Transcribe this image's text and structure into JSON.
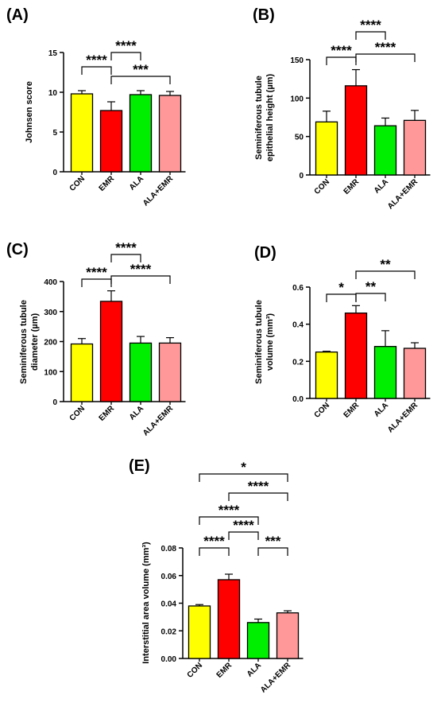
{
  "chart_data": [
    {
      "type": "bar",
      "panel": "(A)",
      "categories": [
        "CON",
        "EMR",
        "ALA",
        "ALA+EMR"
      ],
      "values": [
        9.8,
        7.7,
        9.7,
        9.6
      ],
      "errors": [
        0.4,
        1.1,
        0.5,
        0.5
      ],
      "colors": [
        "#ffff00",
        "#ff0000",
        "#00ee00",
        "#ff9999"
      ],
      "ylabel": "Johnsen score",
      "ylim": [
        0,
        15
      ],
      "yticks": [
        0,
        5,
        10,
        15
      ],
      "significance": [
        {
          "from": 0,
          "to": 1,
          "label": "****"
        },
        {
          "from": 1,
          "to": 2,
          "label": "****"
        },
        {
          "from": 1,
          "to": 3,
          "label": "***"
        }
      ]
    },
    {
      "type": "bar",
      "panel": "(B)",
      "categories": [
        "CON",
        "EMR",
        "ALA",
        "ALA+EMR"
      ],
      "values": [
        69,
        116,
        64,
        71
      ],
      "errors": [
        14,
        21,
        10,
        13
      ],
      "colors": [
        "#ffff00",
        "#ff0000",
        "#00ee00",
        "#ff9999"
      ],
      "ylabel": "Seminiferous tubule epithelial height (µm)",
      "ylabel_lines": [
        "Seminiferous tubule",
        "epithelial height (µm)"
      ],
      "ylim": [
        0,
        150
      ],
      "yticks": [
        0,
        50,
        100,
        150
      ],
      "significance": [
        {
          "from": 0,
          "to": 1,
          "label": "****"
        },
        {
          "from": 1,
          "to": 2,
          "label": "****"
        },
        {
          "from": 1,
          "to": 3,
          "label": "****"
        }
      ]
    },
    {
      "type": "bar",
      "panel": "(C)",
      "categories": [
        "CON",
        "EMR",
        "ALA",
        "ALA+EMR"
      ],
      "values": [
        192,
        334,
        195,
        195
      ],
      "errors": [
        18,
        35,
        22,
        18
      ],
      "colors": [
        "#ffff00",
        "#ff0000",
        "#00ee00",
        "#ff9999"
      ],
      "ylabel": "Seminiferous tubule diameter (µm)",
      "ylabel_lines": [
        "Seminiferous tubule",
        "diameter (µm)"
      ],
      "ylim": [
        0,
        400
      ],
      "yticks": [
        0,
        100,
        200,
        300,
        400
      ],
      "significance": [
        {
          "from": 0,
          "to": 1,
          "label": "****"
        },
        {
          "from": 1,
          "to": 2,
          "label": "****"
        },
        {
          "from": 1,
          "to": 3,
          "label": "****"
        }
      ]
    },
    {
      "type": "bar",
      "panel": "(D)",
      "categories": [
        "CON",
        "EMR",
        "ALA",
        "ALA+EMR"
      ],
      "values": [
        0.25,
        0.46,
        0.28,
        0.27
      ],
      "errors": [
        0.004,
        0.04,
        0.085,
        0.03
      ],
      "colors": [
        "#ffff00",
        "#ff0000",
        "#00ee00",
        "#ff9999"
      ],
      "ylabel": "Seminiferous tubule volume (mm³)",
      "ylabel_lines": [
        "Seminiferous tubule",
        "volume (mm³)"
      ],
      "ylim": [
        0,
        0.6
      ],
      "yticks": [
        "0.0",
        "0.2",
        "0.4",
        "0.6"
      ],
      "significance": [
        {
          "from": 0,
          "to": 1,
          "label": "*"
        },
        {
          "from": 1,
          "to": 2,
          "label": "**"
        },
        {
          "from": 1,
          "to": 3,
          "label": "**"
        }
      ]
    },
    {
      "type": "bar",
      "panel": "(E)",
      "categories": [
        "CON",
        "EMR",
        "ALA",
        "ALA+EMR"
      ],
      "values": [
        0.038,
        0.057,
        0.026,
        0.033
      ],
      "errors": [
        0.001,
        0.004,
        0.0025,
        0.0015
      ],
      "colors": [
        "#ffff00",
        "#ff0000",
        "#00ee00",
        "#ff9999"
      ],
      "ylabel": "Interstitial area volume (mm³)",
      "ylabel_lines": [
        "Interstitial area volume (mm³)"
      ],
      "ylim": [
        0,
        0.08
      ],
      "yticks": [
        "0.00",
        "0.02",
        "0.04",
        "0.06",
        "0.08"
      ],
      "significance": [
        {
          "from": 0,
          "to": 1,
          "label": "****"
        },
        {
          "from": 1,
          "to": 2,
          "label": "****"
        },
        {
          "from": 2,
          "to": 3,
          "label": "***"
        },
        {
          "from": 0,
          "to": 2,
          "label": "****"
        },
        {
          "from": 1,
          "to": 3,
          "label": "****"
        },
        {
          "from": 0,
          "to": 3,
          "label": "*"
        }
      ]
    }
  ]
}
